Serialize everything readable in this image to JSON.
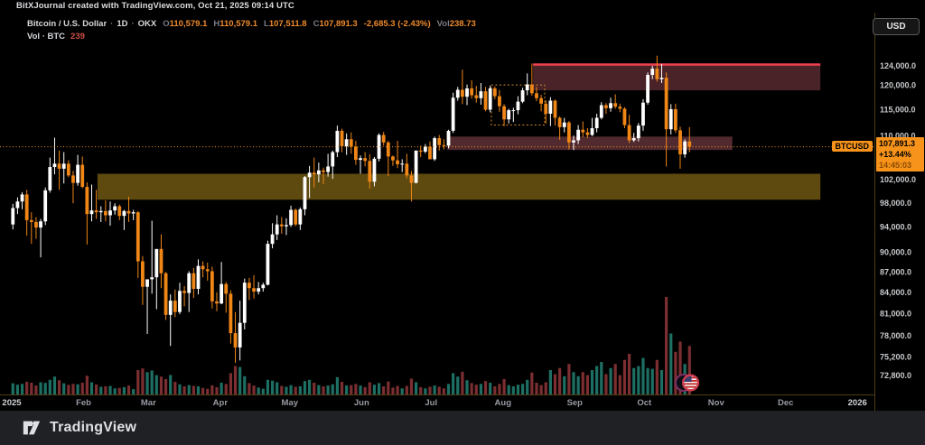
{
  "attribution": "BitXJournal created with TradingView.com, Oct 21, 2025 09:14 UTC",
  "toolbar": {
    "currency_button": "USD"
  },
  "legend": {
    "symbol": "Bitcoin / U.S. Dollar",
    "sep": "·",
    "interval": "1D",
    "exchange": "OKX",
    "ohlc": [
      {
        "label": "O",
        "value": "110,579.1"
      },
      {
        "label": "H",
        "value": "110,579.1"
      },
      {
        "label": "L",
        "value": "107,511.8"
      },
      {
        "label": "C",
        "value": "107,891.3"
      }
    ],
    "change": "-2,685.3 (-2.43%)",
    "vol_label": "Vol",
    "vol_value": "238.73",
    "row2": {
      "label": "Vol · BTC",
      "value": "239"
    }
  },
  "price_scale": {
    "label_marker": "BTCUSD",
    "badge": {
      "price": "107,891.3",
      "change_pct": "+13.44%",
      "countdown": "14:45:03"
    },
    "ticks": [
      {
        "v": 124000,
        "label": "124,000.0"
      },
      {
        "v": 120000,
        "label": "120,000.0"
      },
      {
        "v": 115000,
        "label": "115,000.0"
      },
      {
        "v": 110000,
        "label": "110,000.0"
      },
      {
        "v": 102000,
        "label": "102,000.0"
      },
      {
        "v": 98000,
        "label": "98,000.0"
      },
      {
        "v": 94000,
        "label": "94,000.0"
      },
      {
        "v": 90000,
        "label": "90,000.0"
      },
      {
        "v": 87000,
        "label": "87,000.0"
      },
      {
        "v": 84000,
        "label": "84,000.0"
      },
      {
        "v": 81000,
        "label": "81,000.0"
      },
      {
        "v": 78000,
        "label": "78,000.0"
      },
      {
        "v": 75200,
        "label": "75,200.0"
      },
      {
        "v": 72800,
        "label": "72,800.0"
      }
    ]
  },
  "time_scale": {
    "labels": [
      {
        "label": "2025",
        "day": 0,
        "year": true
      },
      {
        "label": "Feb",
        "day": 31
      },
      {
        "label": "Mar",
        "day": 59
      },
      {
        "label": "Apr",
        "day": 90
      },
      {
        "label": "May",
        "day": 120
      },
      {
        "label": "Jun",
        "day": 151
      },
      {
        "label": "Jul",
        "day": 181
      },
      {
        "label": "Aug",
        "day": 212
      },
      {
        "label": "Sep",
        "day": 243
      },
      {
        "label": "Oct",
        "day": 273
      },
      {
        "label": "Nov",
        "day": 304
      },
      {
        "label": "Dec",
        "day": 334
      },
      {
        "label": "2026",
        "day": 365,
        "year": true
      }
    ]
  },
  "footer": {
    "brand": "TradingView"
  },
  "colors": {
    "accent_orange": "#f7931a",
    "up": "#ffffff",
    "down": "#f08616",
    "vol_up": "#1e6f63",
    "vol_down": "#7c2e31",
    "zone_red_fill": "#4a2328",
    "zone_red_line": "#ef4152",
    "zone_mid_fill": "#512a30",
    "zone_demand_fill": "#5e490f",
    "dashed_box": "#d68a20",
    "divider": "#4e3d13",
    "axis_text": "#c6c8cb",
    "month_text": "#989ba3",
    "year_text": "#d1d3d6"
  },
  "chart_data": {
    "type": "candlestick",
    "title": "Bitcoin / U.S. Dollar",
    "symbol": "BTCUSD",
    "exchange": "OKX",
    "timeframe": "1D",
    "start_date": "2025-01-01",
    "end_date": "2025-10-21",
    "days_per_candle": 2,
    "price_unit": "thousand USD",
    "scale": "log",
    "ylim": [
      72800,
      127000
    ],
    "grid": false,
    "current_price": 107891.3,
    "current_volume_k_btc": 238.73,
    "candles_ohlcv_kusd": [
      [
        94.4,
        97.8,
        93.6,
        97.1,
        55
      ],
      [
        97.1,
        98.9,
        96.1,
        98.2,
        48
      ],
      [
        98.2,
        99.8,
        96.9,
        99.4,
        52
      ],
      [
        99.4,
        100.2,
        92.6,
        95.1,
        62
      ],
      [
        95.1,
        96.4,
        91.3,
        94.8,
        58
      ],
      [
        94.8,
        95.6,
        92.1,
        93.9,
        44
      ],
      [
        93.9,
        95.3,
        89.2,
        94.9,
        60
      ],
      [
        94.9,
        100.6,
        94.3,
        100.1,
        57
      ],
      [
        100.1,
        105.9,
        99.7,
        104.2,
        72
      ],
      [
        104.2,
        109.6,
        102.9,
        104.8,
        88
      ],
      [
        104.8,
        107.2,
        100.2,
        103.9,
        70
      ],
      [
        103.9,
        106.9,
        101.3,
        104.8,
        55
      ],
      [
        104.8,
        105.4,
        102.4,
        102.7,
        47
      ],
      [
        102.7,
        103.5,
        97.9,
        101.4,
        52
      ],
      [
        101.4,
        106.4,
        100.9,
        104.6,
        50
      ],
      [
        104.6,
        106.1,
        100.5,
        100.7,
        58
      ],
      [
        100.7,
        101.5,
        91.2,
        96.1,
        92
      ],
      [
        96.1,
        101.1,
        94.9,
        96.7,
        60
      ],
      [
        96.7,
        100.2,
        95.3,
        96.4,
        49
      ],
      [
        96.4,
        97.4,
        94.8,
        96.6,
        38
      ],
      [
        96.6,
        98.4,
        94.9,
        95.9,
        40
      ],
      [
        95.9,
        98.2,
        94.2,
        96.7,
        42
      ],
      [
        96.7,
        97.9,
        96.0,
        97.4,
        30
      ],
      [
        97.4,
        97.7,
        95.1,
        95.8,
        32
      ],
      [
        95.8,
        96.8,
        93.5,
        96.6,
        36
      ],
      [
        96.6,
        99.0,
        94.8,
        96.2,
        44
      ],
      [
        96.2,
        96.8,
        95.1,
        96.4,
        26
      ],
      [
        96.4,
        96.6,
        86.1,
        88.6,
        120
      ],
      [
        88.6,
        89.4,
        82.2,
        84.8,
        128
      ],
      [
        84.8,
        85.2,
        78.2,
        85.9,
        110
      ],
      [
        85.9,
        95.0,
        83.8,
        86.2,
        118
      ],
      [
        86.2,
        89.0,
        81.6,
        90.5,
        95
      ],
      [
        90.5,
        92.8,
        84.6,
        86.8,
        88
      ],
      [
        86.8,
        87.0,
        80.1,
        80.8,
        76
      ],
      [
        80.8,
        83.7,
        76.6,
        82.8,
        96
      ],
      [
        82.8,
        84.4,
        80.5,
        81.2,
        62
      ],
      [
        81.2,
        85.4,
        80.9,
        84.2,
        50
      ],
      [
        84.2,
        84.9,
        82.0,
        83.9,
        40
      ],
      [
        83.9,
        87.1,
        81.2,
        86.8,
        46
      ],
      [
        86.8,
        87.6,
        83.2,
        84.5,
        42
      ],
      [
        84.5,
        88.9,
        83.7,
        87.9,
        40
      ],
      [
        87.9,
        88.6,
        86.2,
        87.4,
        32
      ],
      [
        87.4,
        88.4,
        85.7,
        87.1,
        28
      ],
      [
        87.1,
        87.8,
        81.7,
        82.7,
        45
      ],
      [
        82.7,
        84.0,
        81.3,
        82.4,
        36
      ],
      [
        82.4,
        88.5,
        82.3,
        85.2,
        58
      ],
      [
        85.2,
        85.5,
        81.1,
        83.8,
        52
      ],
      [
        83.8,
        84.3,
        76.9,
        78.3,
        105
      ],
      [
        78.3,
        81.2,
        74.4,
        76.4,
        140
      ],
      [
        76.4,
        82.8,
        74.7,
        79.7,
        135
      ],
      [
        79.7,
        86.0,
        78.8,
        85.4,
        90
      ],
      [
        85.4,
        86.1,
        82.9,
        84.6,
        56
      ],
      [
        84.6,
        86.5,
        83.1,
        84.1,
        44
      ],
      [
        84.1,
        85.5,
        83.7,
        84.6,
        34
      ],
      [
        84.6,
        85.4,
        84.1,
        85.1,
        28
      ],
      [
        85.1,
        91.8,
        85.0,
        91.3,
        72
      ],
      [
        91.3,
        94.6,
        90.6,
        92.8,
        68
      ],
      [
        92.8,
        95.9,
        91.9,
        94.4,
        60
      ],
      [
        94.4,
        95.6,
        92.9,
        94.1,
        42
      ],
      [
        94.1,
        95.4,
        92.7,
        94.3,
        38
      ],
      [
        94.3,
        97.5,
        94.0,
        96.8,
        46
      ],
      [
        96.8,
        97.0,
        94.1,
        94.4,
        38
      ],
      [
        94.4,
        97.2,
        93.5,
        96.9,
        40
      ],
      [
        96.9,
        102.6,
        95.9,
        102.4,
        66
      ],
      [
        102.4,
        104.4,
        98.8,
        103.2,
        72
      ],
      [
        103.2,
        105.9,
        100.6,
        102.9,
        58
      ],
      [
        102.9,
        105.0,
        101.5,
        103.6,
        46
      ],
      [
        103.6,
        104.1,
        101.2,
        103.3,
        40
      ],
      [
        103.3,
        106.6,
        102.5,
        104.3,
        44
      ],
      [
        104.3,
        107.2,
        102.1,
        106.9,
        50
      ],
      [
        106.9,
        111.9,
        106.0,
        110.9,
        85
      ],
      [
        110.9,
        111.3,
        106.9,
        108.0,
        62
      ],
      [
        108.0,
        110.4,
        106.4,
        109.3,
        44
      ],
      [
        109.3,
        110.6,
        106.6,
        107.9,
        46
      ],
      [
        107.9,
        109.0,
        104.6,
        105.5,
        52
      ],
      [
        105.5,
        106.3,
        103.0,
        105.8,
        44
      ],
      [
        105.8,
        106.9,
        104.3,
        105.3,
        36
      ],
      [
        105.3,
        106.5,
        100.4,
        101.6,
        60
      ],
      [
        101.6,
        106.0,
        100.8,
        105.7,
        48
      ],
      [
        105.7,
        110.4,
        105.2,
        110.1,
        56
      ],
      [
        110.1,
        110.7,
        108.1,
        108.7,
        40
      ],
      [
        108.7,
        109.0,
        102.6,
        106.1,
        64
      ],
      [
        106.1,
        106.3,
        104.4,
        105.4,
        34
      ],
      [
        105.4,
        109.0,
        104.0,
        104.7,
        42
      ],
      [
        104.7,
        105.6,
        103.3,
        104.8,
        30
      ],
      [
        104.8,
        106.6,
        102.2,
        102.7,
        42
      ],
      [
        102.7,
        103.5,
        98.2,
        101.4,
        78
      ],
      [
        101.4,
        106.9,
        101.3,
        107.2,
        60
      ],
      [
        107.2,
        108.1,
        106.0,
        107.0,
        36
      ],
      [
        107.0,
        108.4,
        106.7,
        107.9,
        30
      ],
      [
        107.9,
        108.9,
        105.8,
        105.6,
        38
      ],
      [
        105.6,
        109.8,
        105.3,
        109.5,
        44
      ],
      [
        109.5,
        110.1,
        107.2,
        108.2,
        38
      ],
      [
        108.2,
        109.3,
        107.4,
        108.1,
        30
      ],
      [
        108.1,
        111.1,
        107.6,
        110.9,
        52
      ],
      [
        110.9,
        118.4,
        110.5,
        117.4,
        105
      ],
      [
        117.4,
        119.6,
        116.8,
        119.0,
        88
      ],
      [
        119.0,
        123.2,
        116.1,
        117.6,
        112
      ],
      [
        117.6,
        120.1,
        115.9,
        119.3,
        70
      ],
      [
        119.3,
        121.0,
        117.2,
        117.9,
        56
      ],
      [
        117.9,
        119.8,
        116.4,
        117.3,
        48
      ],
      [
        117.3,
        120.4,
        116.0,
        118.7,
        52
      ],
      [
        118.7,
        119.6,
        114.7,
        115.0,
        66
      ],
      [
        115.0,
        119.9,
        114.5,
        119.3,
        58
      ],
      [
        119.3,
        119.7,
        117.1,
        117.7,
        40
      ],
      [
        117.7,
        119.0,
        114.6,
        115.7,
        52
      ],
      [
        115.7,
        116.1,
        111.8,
        113.1,
        76
      ],
      [
        113.1,
        115.2,
        112.3,
        114.9,
        46
      ],
      [
        114.9,
        115.4,
        112.6,
        114.9,
        40
      ],
      [
        114.9,
        117.7,
        114.1,
        116.6,
        48
      ],
      [
        116.6,
        119.4,
        116.3,
        118.9,
        52
      ],
      [
        118.9,
        122.4,
        117.9,
        120.1,
        72
      ],
      [
        120.1,
        124.5,
        117.8,
        118.3,
        108
      ],
      [
        118.3,
        119.6,
        116.7,
        117.3,
        58
      ],
      [
        117.3,
        118.0,
        114.7,
        116.2,
        46
      ],
      [
        116.2,
        116.9,
        112.3,
        114.2,
        60
      ],
      [
        114.2,
        117.5,
        111.8,
        116.8,
        120
      ],
      [
        116.8,
        117.0,
        111.9,
        113.4,
        100
      ],
      [
        113.4,
        113.7,
        109.2,
        111.6,
        130
      ],
      [
        111.6,
        113.4,
        110.6,
        112.5,
        90
      ],
      [
        112.5,
        112.8,
        107.4,
        108.7,
        150
      ],
      [
        108.7,
        110.0,
        107.3,
        109.1,
        110
      ],
      [
        109.1,
        112.0,
        108.4,
        111.1,
        90
      ],
      [
        111.1,
        112.7,
        109.7,
        110.6,
        110
      ],
      [
        110.6,
        111.4,
        109.5,
        110.1,
        95
      ],
      [
        110.1,
        113.4,
        109.9,
        111.4,
        120
      ],
      [
        111.4,
        114.2,
        110.6,
        113.4,
        140
      ],
      [
        113.4,
        116.5,
        113.1,
        115.9,
        160
      ],
      [
        115.9,
        116.3,
        114.2,
        115.3,
        100
      ],
      [
        115.3,
        117.4,
        114.6,
        116.3,
        130
      ],
      [
        116.3,
        118.1,
        115.2,
        115.6,
        150
      ],
      [
        115.6,
        116.2,
        114.5,
        115.2,
        95
      ],
      [
        115.2,
        115.5,
        111.4,
        112.0,
        170
      ],
      [
        112.0,
        114.0,
        108.6,
        109.1,
        200
      ],
      [
        109.1,
        110.5,
        108.8,
        109.5,
        130
      ],
      [
        109.5,
        112.4,
        108.9,
        111.9,
        140
      ],
      [
        111.9,
        117.1,
        110.9,
        116.4,
        180
      ],
      [
        116.4,
        122.6,
        116.0,
        122.1,
        130
      ],
      [
        122.1,
        124.0,
        121.2,
        123.4,
        126
      ],
      [
        123.4,
        126.2,
        120.7,
        121.2,
        170
      ],
      [
        121.2,
        124.4,
        120.4,
        121.5,
        120
      ],
      [
        121.5,
        122.6,
        104.3,
        111.2,
        480
      ],
      [
        111.2,
        116.1,
        110.2,
        115.1,
        300
      ],
      [
        115.1,
        116.2,
        110.5,
        111.0,
        210
      ],
      [
        111.0,
        111.7,
        103.9,
        106.5,
        260
      ],
      [
        106.5,
        109.3,
        105.9,
        108.9,
        150
      ],
      [
        108.9,
        111.6,
        106.9,
        107.9,
        239
      ]
    ],
    "drawings": {
      "upper_supply_zone": {
        "day1": 225,
        "day2": 349,
        "price_top": 124300,
        "price_bottom": 118900
      },
      "resistance_line": {
        "day1": 225,
        "day2": 349,
        "price": 124300
      },
      "mid_supply_zone": {
        "day1": 188,
        "day2": 311,
        "price_top": 109800,
        "price_bottom": 107300
      },
      "demand_zone": {
        "day1": 37,
        "day2": 349,
        "price_top": 103000,
        "price_bottom": 98500
      },
      "dashed_box": {
        "day1": 207,
        "day2": 230,
        "price_top": 120000,
        "price_bottom": 112000
      },
      "current_price_line": {
        "price": 107891.3
      }
    },
    "events": [
      {
        "day": 290,
        "type": "secondary-marker"
      },
      {
        "day": 293,
        "type": "us-flag-economic-event"
      }
    ]
  }
}
